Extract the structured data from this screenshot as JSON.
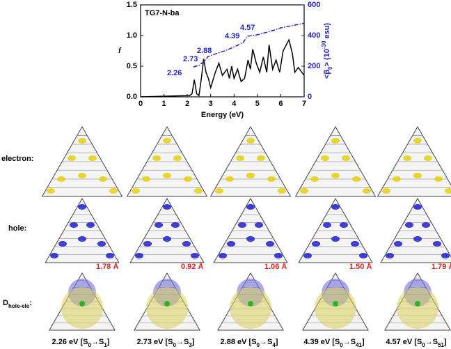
{
  "chart_data": {
    "type": "line",
    "title": "TG7-N-ba",
    "xlabel": "Energy (eV)",
    "ylabel": "f",
    "y2label": [
      "<β",
      "0",
      "> (10",
      "-30",
      " esu)"
    ],
    "xlim": [
      0,
      7
    ],
    "xticks": [
      0,
      1,
      2,
      3,
      4,
      5,
      6,
      7
    ],
    "ylim": [
      0,
      1.5
    ],
    "yticks": [
      {
        "value": 0,
        "label": "0.0"
      },
      0.5,
      {
        "value": 1,
        "label": "1.0"
      },
      1.5
    ],
    "y2lim": [
      0,
      600
    ],
    "y2ticks": [
      0,
      200,
      400,
      600
    ],
    "annotations": [
      "2.26",
      "2.73",
      "2.88",
      "4.39",
      "4.57"
    ],
    "series": [
      {
        "color": "#000000",
        "x": [
          0,
          2.1,
          2.2,
          2.3,
          2.4,
          2.5,
          2.6,
          2.7,
          2.8,
          2.9,
          3.0,
          3.2,
          3.35,
          3.5,
          3.7,
          3.8,
          3.9,
          4.0,
          4.15,
          4.3,
          4.45,
          4.6,
          4.7,
          4.8,
          4.95,
          5.1,
          5.25,
          5.4,
          5.5,
          5.65,
          5.8,
          5.95,
          6.1,
          6.35,
          6.5,
          6.6,
          6.75,
          6.9,
          7.0
        ],
        "values": [
          0,
          0.02,
          0.05,
          0.28,
          0.05,
          0.02,
          0.3,
          0.62,
          0.4,
          0.3,
          0.15,
          0.4,
          0.55,
          0.35,
          0.45,
          0.3,
          0.5,
          0.3,
          0.45,
          0.25,
          0.3,
          0.6,
          0.45,
          0.78,
          0.55,
          0.4,
          0.65,
          0.4,
          0.85,
          0.45,
          0.6,
          0.4,
          0.75,
          0.93,
          0.7,
          0.4,
          0.48,
          0.4,
          0.35
        ]
      },
      {
        "color": "#1f1fbf",
        "axis": "y2",
        "style": "dashdot",
        "x": [
          2.26,
          2.5,
          2.73,
          2.88,
          3.2,
          3.6,
          4.0,
          4.39,
          4.57,
          5.0,
          5.5,
          6.0,
          6.5,
          7.0
        ],
        "values": [
          195,
          205,
          232,
          262,
          280,
          300,
          325,
          355,
          395,
          405,
          425,
          450,
          465,
          480
        ]
      }
    ]
  },
  "row_labels": {
    "electron": "electron:",
    "hole": "hole:",
    "d": [
      "D",
      "hole-ele",
      ":"
    ]
  },
  "panels": [
    {
      "distance": "1.78 Å",
      "caption": [
        "2.26 eV [S",
        "0",
        "→S",
        "1",
        "]"
      ]
    },
    {
      "distance": "0.92 Å",
      "caption": [
        "2.73 eV [S",
        "0",
        "→S",
        "3",
        "]"
      ]
    },
    {
      "distance": "1.06 Å",
      "caption": [
        "2.88 eV [S",
        "0",
        "→S",
        "4",
        "]"
      ]
    },
    {
      "distance": "1.50 Å",
      "caption": [
        "4.39 eV [S",
        "0",
        "→S",
        "41",
        "]"
      ]
    },
    {
      "distance": "1.79 Å",
      "caption": [
        "4.57 eV [S",
        "0",
        "→S",
        "51",
        "]"
      ]
    }
  ]
}
